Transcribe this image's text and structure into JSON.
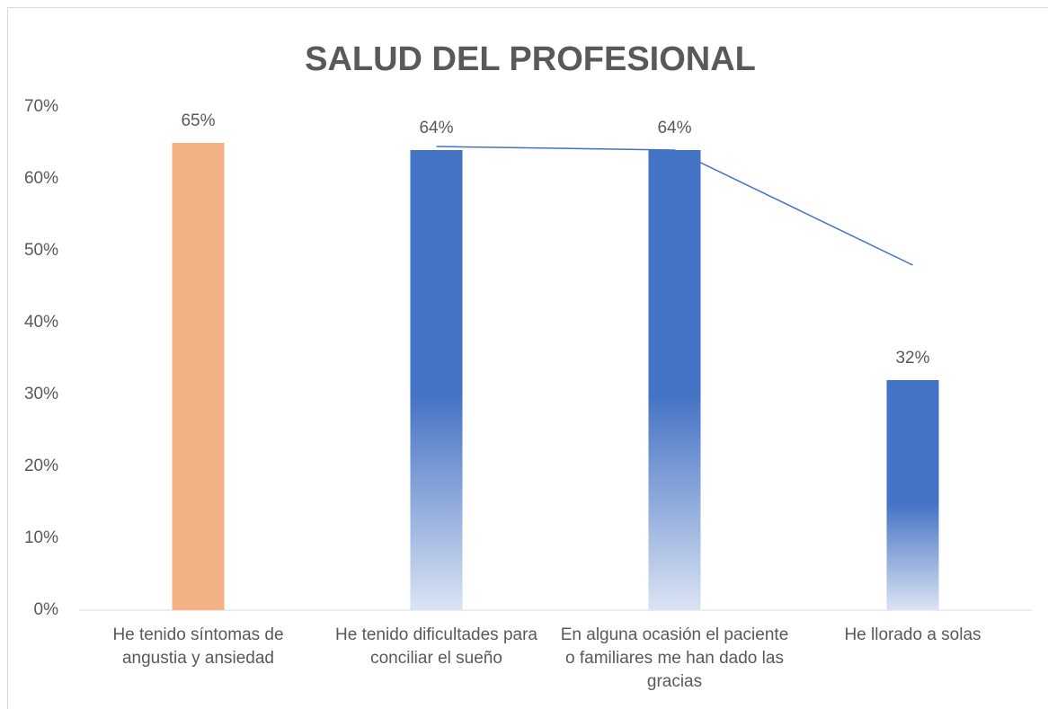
{
  "chart_data": {
    "type": "bar",
    "title": "SALUD  DEL  PROFESIONAL",
    "categories": [
      "He tenido síntomas de angustia y ansiedad",
      "He tenido dificultades para conciliar el sueño",
      "En alguna ocasión el paciente o familiares me han dado las gracias",
      "He llorado a solas"
    ],
    "values": [
      65,
      64,
      64,
      32
    ],
    "value_labels": [
      "65%",
      "64%",
      "64%",
      "32%"
    ],
    "colors": [
      "#f4b183",
      "#4472c4",
      "#4472c4",
      "#4472c4"
    ],
    "fill_style": [
      "solid",
      "gradient",
      "gradient",
      "gradient"
    ],
    "trendline": {
      "type": "line",
      "color": "#4472c4",
      "values": [
        null,
        64.5,
        64,
        48
      ]
    },
    "ylim": [
      0,
      70
    ],
    "yticks": [
      {
        "value": 0,
        "label": "0%"
      },
      {
        "value": 10,
        "label": "10%"
      },
      {
        "value": 20,
        "label": "20%"
      },
      {
        "value": 30,
        "label": "30%"
      },
      {
        "value": 40,
        "label": "40%"
      },
      {
        "value": 50,
        "label": "50%"
      },
      {
        "value": 60,
        "label": "60%"
      },
      {
        "value": 70,
        "label": "70%"
      }
    ],
    "grid": false
  }
}
